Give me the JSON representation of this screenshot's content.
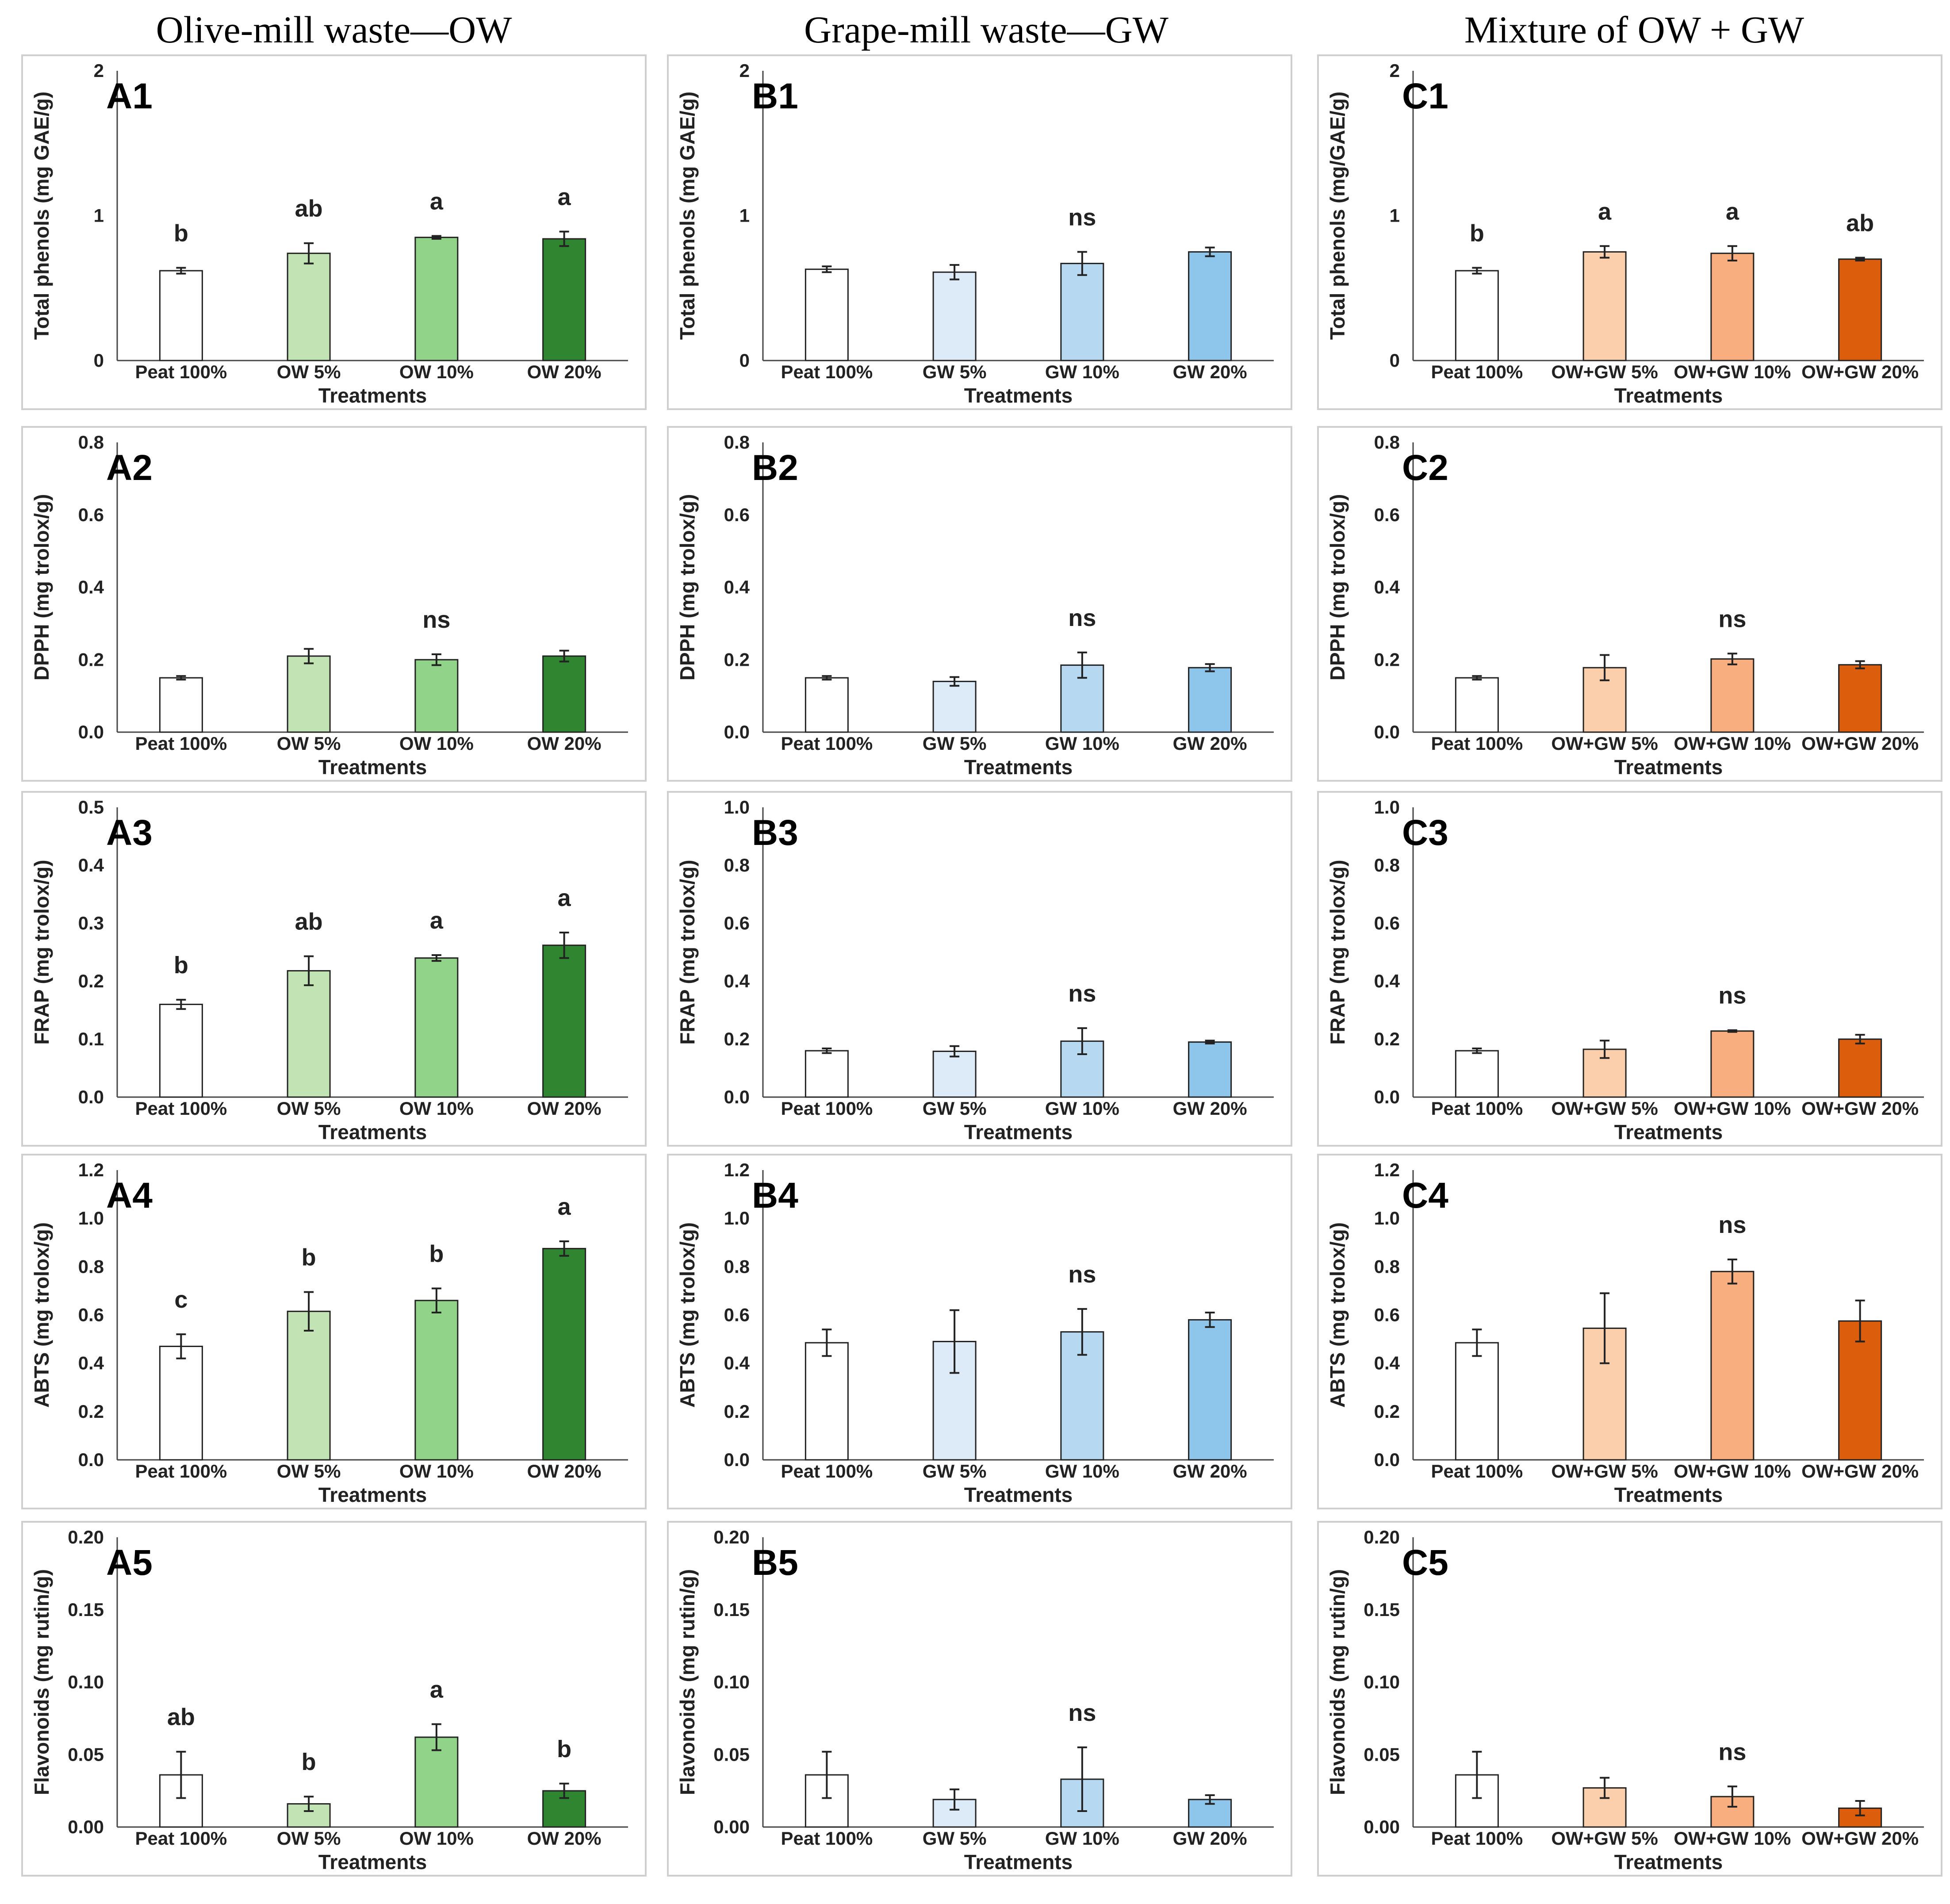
{
  "column_titles": [
    "Olive-mill waste—OW",
    "Grape-mill waste—GW",
    "Mixture of OW + GW"
  ],
  "colors": {
    "peat": "#ffffff",
    "OW": [
      "#c2e4b4",
      "#91d388",
      "#2f8530"
    ],
    "GW": [
      "#dcebf7",
      "#b7d8f1",
      "#8ec5ea"
    ],
    "MIX": [
      "#fbcfac",
      "#f8ae7f",
      "#dc5e0d"
    ]
  },
  "chart_data": [
    {
      "id": "A1",
      "type": "bar",
      "label": "A1",
      "categories": [
        "Peat 100%",
        "OW 5%",
        "OW 10%",
        "OW 20%"
      ],
      "values": [
        0.62,
        0.74,
        0.85,
        0.84
      ],
      "errors": [
        0.02,
        0.07,
        0.01,
        0.05
      ],
      "sig": [
        "b",
        "ab",
        "a",
        "a"
      ],
      "ylabel": "Total phenols (mg GAE/g)",
      "xlabel": "Treatments",
      "ylim": [
        0,
        2
      ],
      "ticks": [
        "0",
        "1",
        "2"
      ]
    },
    {
      "id": "B1",
      "type": "bar",
      "label": "B1",
      "categories": [
        "Peat 100%",
        "GW 5%",
        "GW 10%",
        "GW 20%"
      ],
      "values": [
        0.63,
        0.61,
        0.67,
        0.75
      ],
      "errors": [
        0.02,
        0.05,
        0.08,
        0.03
      ],
      "sig": [
        "",
        "",
        "ns",
        ""
      ],
      "ylabel": "Total phenols (mg GAE/g)",
      "xlabel": "Treatments",
      "ylim": [
        0,
        2
      ],
      "ticks": [
        "0",
        "1",
        "2"
      ]
    },
    {
      "id": "C1",
      "type": "bar",
      "label": "C1",
      "categories": [
        "Peat 100%",
        "OW+GW 5%",
        "OW+GW 10%",
        "OW+GW 20%"
      ],
      "values": [
        0.62,
        0.75,
        0.74,
        0.7
      ],
      "errors": [
        0.02,
        0.04,
        0.05,
        0.01
      ],
      "sig": [
        "b",
        "a",
        "a",
        "ab"
      ],
      "ylabel": "Total phenols (mg/GAE/g)",
      "xlabel": "Treatments",
      "ylim": [
        0,
        2
      ],
      "ticks": [
        "0",
        "1",
        "2"
      ]
    },
    {
      "id": "A2",
      "type": "bar",
      "label": "A2",
      "categories": [
        "Peat 100%",
        "OW 5%",
        "OW 10%",
        "OW 20%"
      ],
      "values": [
        0.15,
        0.21,
        0.2,
        0.21
      ],
      "errors": [
        0.005,
        0.02,
        0.015,
        0.015
      ],
      "sig": [
        "",
        "",
        "ns",
        ""
      ],
      "ylabel": "DPPH (mg trolox/g)",
      "xlabel": "Treatments",
      "ylim": [
        0,
        0.8
      ],
      "ticks": [
        "0.0",
        "0.2",
        "0.4",
        "0.6",
        "0.8"
      ]
    },
    {
      "id": "B2",
      "type": "bar",
      "label": "B2",
      "categories": [
        "Peat 100%",
        "GW 5%",
        "GW 10%",
        "GW 20%"
      ],
      "values": [
        0.15,
        0.14,
        0.185,
        0.178
      ],
      "errors": [
        0.005,
        0.012,
        0.035,
        0.01
      ],
      "sig": [
        "",
        "",
        "ns",
        ""
      ],
      "ylabel": "DPPH (mg trolox/g)",
      "xlabel": "Treatments",
      "ylim": [
        0,
        0.8
      ],
      "ticks": [
        "0.0",
        "0.2",
        "0.4",
        "0.6",
        "0.8"
      ]
    },
    {
      "id": "C2",
      "type": "bar",
      "label": "C2",
      "categories": [
        "Peat 100%",
        "OW+GW 5%",
        "OW+GW 10%",
        "OW+GW 20%"
      ],
      "values": [
        0.15,
        0.178,
        0.202,
        0.186
      ],
      "errors": [
        0.005,
        0.035,
        0.015,
        0.01
      ],
      "sig": [
        "",
        "",
        "ns",
        ""
      ],
      "ylabel": "DPPH (mg trolox/g)",
      "xlabel": "Treatments",
      "ylim": [
        0,
        0.8
      ],
      "ticks": [
        "0.0",
        "0.2",
        "0.4",
        "0.6",
        "0.8"
      ]
    },
    {
      "id": "A3",
      "type": "bar",
      "label": "A3",
      "categories": [
        "Peat 100%",
        "OW 5%",
        "OW 10%",
        "OW 20%"
      ],
      "values": [
        0.16,
        0.218,
        0.24,
        0.262
      ],
      "errors": [
        0.008,
        0.025,
        0.005,
        0.022
      ],
      "sig": [
        "b",
        "ab",
        "a",
        "a"
      ],
      "ylabel": "FRAP (mg trolox/g)",
      "xlabel": "Treatments",
      "ylim": [
        0,
        0.5
      ],
      "ticks": [
        "0.0",
        "0.1",
        "0.2",
        "0.3",
        "0.4",
        "0.5"
      ]
    },
    {
      "id": "B3",
      "type": "bar",
      "label": "B3",
      "categories": [
        "Peat 100%",
        "GW 5%",
        "GW 10%",
        "GW 20%"
      ],
      "values": [
        0.16,
        0.158,
        0.193,
        0.19
      ],
      "errors": [
        0.008,
        0.018,
        0.045,
        0.005
      ],
      "sig": [
        "",
        "",
        "ns",
        ""
      ],
      "ylabel": "FRAP (mg trolox/g)",
      "xlabel": "Treatments",
      "ylim": [
        0,
        1
      ],
      "ticks": [
        "0.0",
        "0.2",
        "0.4",
        "0.6",
        "0.8",
        "1.0"
      ]
    },
    {
      "id": "C3",
      "type": "bar",
      "label": "C3",
      "categories": [
        "Peat 100%",
        "OW+GW 5%",
        "OW+GW 10%",
        "OW+GW 20%"
      ],
      "values": [
        0.16,
        0.165,
        0.228,
        0.2
      ],
      "errors": [
        0.008,
        0.03,
        0.003,
        0.015
      ],
      "sig": [
        "",
        "",
        "ns",
        ""
      ],
      "ylabel": "FRAP (mg trolox/g)",
      "xlabel": "Treatments",
      "ylim": [
        0,
        1
      ],
      "ticks": [
        "0.0",
        "0.2",
        "0.4",
        "0.6",
        "0.8",
        "1.0"
      ]
    },
    {
      "id": "A4",
      "type": "bar",
      "label": "A4",
      "categories": [
        "Peat 100%",
        "OW 5%",
        "OW 10%",
        "OW 20%"
      ],
      "values": [
        0.47,
        0.615,
        0.66,
        0.875
      ],
      "errors": [
        0.05,
        0.08,
        0.05,
        0.03
      ],
      "sig": [
        "c",
        "b",
        "b",
        "a"
      ],
      "ylabel": "ABTS (mg trolox/g)",
      "xlabel": "Treatments",
      "ylim": [
        0,
        1.2
      ],
      "ticks": [
        "0.0",
        "0.2",
        "0.4",
        "0.6",
        "0.8",
        "1.0",
        "1.2"
      ]
    },
    {
      "id": "B4",
      "type": "bar",
      "label": "B4",
      "categories": [
        "Peat 100%",
        "GW 5%",
        "GW 10%",
        "GW 20%"
      ],
      "values": [
        0.485,
        0.49,
        0.53,
        0.58
      ],
      "errors": [
        0.055,
        0.13,
        0.095,
        0.03
      ],
      "sig": [
        "",
        "",
        "ns",
        ""
      ],
      "ylabel": "ABTS (mg trolox/g)",
      "xlabel": "Treatments",
      "ylim": [
        0,
        1.2
      ],
      "ticks": [
        "0.0",
        "0.2",
        "0.4",
        "0.6",
        "0.8",
        "1.0",
        "1.2"
      ]
    },
    {
      "id": "C4",
      "type": "bar",
      "label": "C4",
      "categories": [
        "Peat 100%",
        "OW+GW 5%",
        "OW+GW 10%",
        "OW+GW 20%"
      ],
      "values": [
        0.485,
        0.545,
        0.78,
        0.575
      ],
      "errors": [
        0.055,
        0.145,
        0.05,
        0.085
      ],
      "sig": [
        "",
        "",
        "ns",
        ""
      ],
      "ylabel": "ABTS (mg trolox/g)",
      "xlabel": "Treatments",
      "ylim": [
        0,
        1.2
      ],
      "ticks": [
        "0.0",
        "0.2",
        "0.4",
        "0.6",
        "0.8",
        "1.0",
        "1.2"
      ]
    },
    {
      "id": "A5",
      "type": "bar",
      "label": "A5",
      "categories": [
        "Peat 100%",
        "OW 5%",
        "OW 10%",
        "OW 20%"
      ],
      "values": [
        0.036,
        0.016,
        0.062,
        0.025
      ],
      "errors": [
        0.016,
        0.005,
        0.009,
        0.005
      ],
      "sig": [
        "ab",
        "b",
        "a",
        "b"
      ],
      "ylabel": "Flavonoids (mg rutin/g)",
      "xlabel": "Treatments",
      "ylim": [
        0,
        0.2
      ],
      "ticks": [
        "0.00",
        "0.05",
        "0.10",
        "0.15",
        "0.20"
      ]
    },
    {
      "id": "B5",
      "type": "bar",
      "label": "B5",
      "categories": [
        "Peat 100%",
        "GW 5%",
        "GW 10%",
        "GW 20%"
      ],
      "values": [
        0.036,
        0.019,
        0.033,
        0.019
      ],
      "errors": [
        0.016,
        0.007,
        0.022,
        0.003
      ],
      "sig": [
        "",
        "",
        "ns",
        ""
      ],
      "ylabel": "Flavonoids (mg rutin/g)",
      "xlabel": "Treatments",
      "ylim": [
        0,
        0.2
      ],
      "ticks": [
        "0.00",
        "0.05",
        "0.10",
        "0.15",
        "0.20"
      ]
    },
    {
      "id": "C5",
      "type": "bar",
      "label": "C5",
      "categories": [
        "Peat 100%",
        "OW+GW 5%",
        "OW+GW 10%",
        "OW+GW 20%"
      ],
      "values": [
        0.036,
        0.027,
        0.021,
        0.013
      ],
      "errors": [
        0.016,
        0.007,
        0.007,
        0.005
      ],
      "sig": [
        "",
        "",
        "ns",
        ""
      ],
      "ylabel": "Flavonoids (mg rutin/g)",
      "xlabel": "Treatments",
      "ylim": [
        0,
        0.2
      ],
      "ticks": [
        "0.00",
        "0.05",
        "0.10",
        "0.15",
        "0.20"
      ]
    }
  ]
}
